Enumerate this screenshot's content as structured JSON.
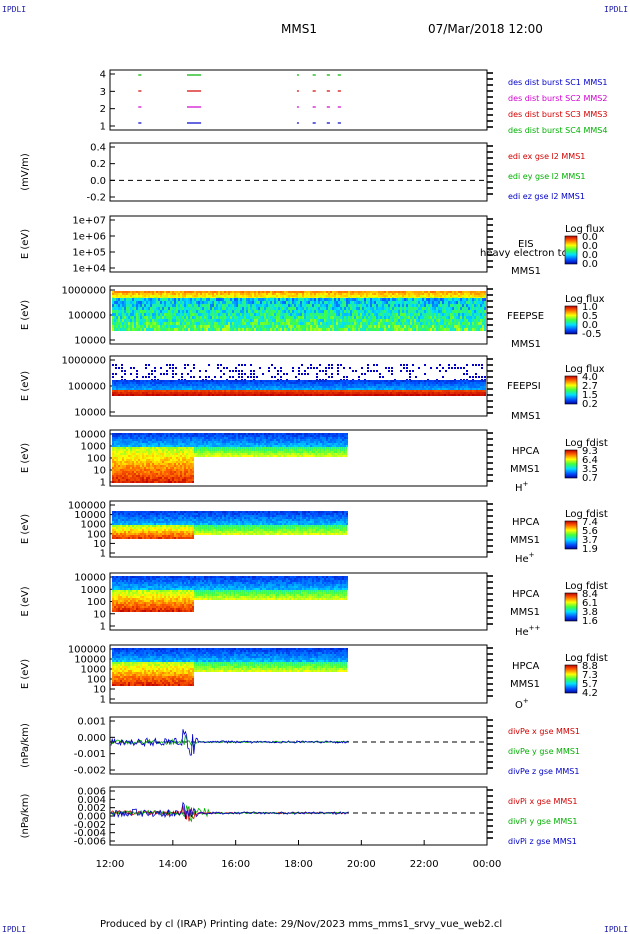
{
  "corner_label": "IPDLI",
  "title": "MMS1",
  "datetime": "07/Mar/2018 12:00",
  "footer": "Produced by cl (IRAP)   Printing date: 29/Nov/2023   mms_mms1_srvy_vue_web2.cl",
  "colors": {
    "axis": "#000000",
    "red": "#d40000",
    "green": "#00b000",
    "blue": "#0000c8",
    "magenta": "#d000d0"
  },
  "chart_data": {
    "type": "heatmap",
    "x_axis": {
      "tick_labels": [
        "12:00",
        "14:00",
        "16:00",
        "18:00",
        "20:00",
        "22:00",
        "00:00"
      ],
      "tick_hours": [
        12,
        14,
        16,
        18,
        20,
        22,
        24
      ],
      "range_hours": [
        12,
        24
      ]
    },
    "panels": [
      {
        "id": "burst",
        "type": "scatter",
        "ylabel": "",
        "y_ticks": [
          "4",
          "3",
          "2",
          "1"
        ],
        "legend": [
          {
            "label": "des dist burst SC1 MMS1",
            "color": "#0000c8"
          },
          {
            "label": "des dist burst SC2 MMS2",
            "color": "#d000d0"
          },
          {
            "label": "des dist burst SC3 MMS3",
            "color": "#d40000"
          },
          {
            "label": "des dist burst SC4 MMS4",
            "color": "#00b000"
          }
        ],
        "bursts_hours": [
          [
            12.9,
            13.0
          ],
          [
            14.45,
            14.9
          ],
          [
            17.95,
            18.0
          ],
          [
            18.45,
            18.55
          ],
          [
            18.9,
            19.0
          ],
          [
            19.25,
            19.35
          ]
        ]
      },
      {
        "id": "edi",
        "type": "line",
        "ylabel": "(mV/m)",
        "y_ticks": [
          "0.4",
          "0.2",
          "0.0",
          "-0.2"
        ],
        "legend": [
          {
            "label": "edi ex gse l2 MMS1",
            "color": "#d40000"
          },
          {
            "label": "edi ey gse l2 MMS1",
            "color": "#00b000"
          },
          {
            "label": "edi ez gse l2 MMS1",
            "color": "#0000c8"
          }
        ]
      },
      {
        "id": "eis",
        "type": "heatmap",
        "ylabel": "E (eV)",
        "y_ticks": [
          "1e+07",
          "1e+06",
          "1e+05",
          "1e+04"
        ],
        "instrument": "EIS",
        "spacecraft": "MMS1",
        "overlay_text": "heavy electron to",
        "colorbar_title": "Log flux",
        "colorbar_ticks": [
          "0.0",
          "0.0",
          "0.0",
          "0.0"
        ]
      },
      {
        "id": "feepse",
        "type": "heatmap",
        "ylabel": "E (eV)",
        "y_ticks": [
          "1000000",
          "100000",
          "10000"
        ],
        "instrument": "FEEPSE",
        "spacecraft": "MMS1",
        "colorbar_title": "Log flux",
        "colorbar_ticks": [
          "1.0",
          "0.5",
          "0.0",
          "-0.5"
        ]
      },
      {
        "id": "feepsi",
        "type": "heatmap",
        "ylabel": "E (eV)",
        "y_ticks": [
          "1000000",
          "100000",
          "10000"
        ],
        "instrument": "FEEPSI",
        "spacecraft": "MMS1",
        "colorbar_title": "Log flux",
        "colorbar_ticks": [
          "4.0",
          "2.7",
          "1.5",
          "0.2"
        ]
      },
      {
        "id": "hpca_h",
        "type": "heatmap",
        "ylabel": "E (eV)",
        "y_ticks": [
          "10000",
          "1000",
          "100",
          "10",
          "1"
        ],
        "instrument": "HPCA",
        "spacecraft": "MMS1",
        "species": "H",
        "species_sup": "+",
        "colorbar_title": "Log fdist",
        "colorbar_ticks": [
          "9.3",
          "6.4",
          "3.5",
          "0.7"
        ]
      },
      {
        "id": "hpca_he",
        "type": "heatmap",
        "ylabel": "E (eV)",
        "y_ticks": [
          "100000",
          "10000",
          "1000",
          "100",
          "10",
          "1"
        ],
        "instrument": "HPCA",
        "spacecraft": "MMS1",
        "species": "He",
        "species_sup": "+",
        "colorbar_title": "Log fdist",
        "colorbar_ticks": [
          "7.4",
          "5.6",
          "3.7",
          "1.9"
        ]
      },
      {
        "id": "hpca_he2",
        "type": "heatmap",
        "ylabel": "E (eV)",
        "y_ticks": [
          "10000",
          "1000",
          "100",
          "10",
          "1"
        ],
        "instrument": "HPCA",
        "spacecraft": "MMS1",
        "species": "He",
        "species_sup": "++",
        "colorbar_title": "Log fdist",
        "colorbar_ticks": [
          "8.4",
          "6.1",
          "3.8",
          "1.6"
        ]
      },
      {
        "id": "hpca_o",
        "type": "heatmap",
        "ylabel": "E (eV)",
        "y_ticks": [
          "100000",
          "10000",
          "1000",
          "100",
          "10",
          "1"
        ],
        "instrument": "HPCA",
        "spacecraft": "MMS1",
        "species": "O",
        "species_sup": "+",
        "colorbar_title": "Log fdist",
        "colorbar_ticks": [
          "8.8",
          "7.3",
          "5.7",
          "4.2"
        ]
      },
      {
        "id": "divpe",
        "type": "line",
        "ylabel": "(nPa/km)",
        "y_ticks": [
          "0.001",
          "0.000",
          "-0.001",
          "-0.002"
        ],
        "legend": [
          {
            "label": "divPe x gse MMS1",
            "color": "#d40000"
          },
          {
            "label": "divPe y gse MMS1",
            "color": "#00b000"
          },
          {
            "label": "divPe z gse MMS1",
            "color": "#0000c8"
          }
        ]
      },
      {
        "id": "divpi",
        "type": "line",
        "ylabel": "(nPa/km)",
        "y_ticks": [
          "0.006",
          "0.004",
          "0.002",
          "0.000",
          "-0.002",
          "-0.004",
          "-0.006"
        ],
        "legend": [
          {
            "label": "divPi x gse MMS1",
            "color": "#d40000"
          },
          {
            "label": "divPi y gse MMS1",
            "color": "#00b000"
          },
          {
            "label": "divPi z gse MMS1",
            "color": "#0000c8"
          }
        ]
      }
    ]
  }
}
